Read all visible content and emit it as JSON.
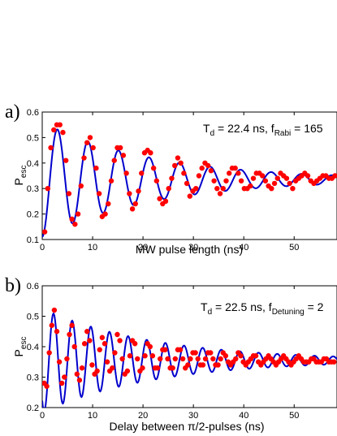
{
  "chart_data": [
    {
      "type": "scatter",
      "panel_label": "a)",
      "xlabel": "MW pulse length (ns)",
      "ylabel_main": "P",
      "ylabel_sub": "esc",
      "annotation": {
        "t_main": "T",
        "t_sub": "d",
        "t_value": " = 22.4 ns, f",
        "f_sub": "Rabi",
        "f_value": " = 165"
      },
      "xlim": [
        0,
        58.5
      ],
      "ylim": [
        0.1,
        0.6
      ],
      "x_ticks": [
        "0",
        "10",
        "20",
        "30",
        "40",
        "50"
      ],
      "y_ticks": [
        "0.1",
        "0.2",
        "0.3",
        "0.4",
        "0.5",
        "0.6"
      ],
      "grid": false,
      "colors": {
        "points": "#ff0000",
        "fit": "#0000cc"
      },
      "fit": {
        "offset": 0.335,
        "amplitude": -0.225,
        "period_ns": 6.06,
        "decay_ns": 22.4
      },
      "series": [
        {
          "style": "markers",
          "x": [
            0.5,
            1.1,
            1.7,
            2.3,
            2.9,
            3.5,
            4.1,
            4.7,
            5.3,
            5.9,
            6.5,
            7.1,
            7.7,
            8.3,
            8.9,
            9.5,
            10.1,
            10.7,
            11.3,
            11.9,
            12.5,
            13.1,
            13.7,
            14.3,
            14.9,
            15.5,
            16.1,
            16.7,
            17.3,
            17.9,
            18.5,
            19.1,
            19.7,
            20.3,
            20.9,
            21.5,
            22.1,
            22.7,
            23.3,
            23.9,
            24.5,
            25.1,
            25.7,
            26.3,
            26.9,
            27.5,
            28.1,
            28.7,
            29.3,
            29.9,
            30.5,
            31.1,
            31.7,
            32.3,
            32.9,
            33.5,
            34.1,
            34.7,
            35.3,
            35.9,
            36.5,
            37.1,
            37.7,
            38.3,
            38.9,
            39.5,
            40.1,
            40.7,
            41.3,
            41.9,
            42.5,
            43.1,
            43.7,
            44.3,
            44.9,
            45.5,
            46.1,
            46.7,
            47.3,
            47.9,
            48.5,
            49.1,
            49.7,
            50.3,
            50.9,
            51.5,
            52.1,
            52.7,
            53.3,
            53.9,
            54.5,
            55.1,
            55.7,
            56.3,
            56.9,
            57.5,
            58.1
          ],
          "y": [
            0.13,
            0.3,
            0.46,
            0.53,
            0.55,
            0.55,
            0.52,
            0.41,
            0.28,
            0.18,
            0.16,
            0.2,
            0.31,
            0.42,
            0.48,
            0.5,
            0.46,
            0.38,
            0.28,
            0.19,
            0.2,
            0.24,
            0.33,
            0.41,
            0.46,
            0.46,
            0.43,
            0.36,
            0.28,
            0.22,
            0.24,
            0.29,
            0.36,
            0.44,
            0.45,
            0.44,
            0.38,
            0.33,
            0.26,
            0.24,
            0.25,
            0.3,
            0.34,
            0.39,
            0.42,
            0.4,
            0.36,
            0.32,
            0.27,
            0.29,
            0.3,
            0.35,
            0.38,
            0.4,
            0.39,
            0.37,
            0.33,
            0.3,
            0.28,
            0.3,
            0.33,
            0.36,
            0.38,
            0.38,
            0.36,
            0.33,
            0.3,
            0.3,
            0.31,
            0.34,
            0.36,
            0.36,
            0.35,
            0.33,
            0.31,
            0.3,
            0.32,
            0.34,
            0.36,
            0.35,
            0.34,
            0.32,
            0.3,
            0.33,
            0.34,
            0.35,
            0.36,
            0.35,
            0.33,
            0.32,
            0.33,
            0.34,
            0.35,
            0.35,
            0.34,
            0.34,
            0.35
          ]
        },
        {
          "style": "fit-line"
        }
      ]
    },
    {
      "type": "scatter",
      "panel_label": "b)",
      "xlabel": "Delay between π/2-pulses (ns)",
      "ylabel_main": "P",
      "ylabel_sub": "esc",
      "annotation": {
        "t_main": "T",
        "t_sub": "d",
        "t_value": " = 22.5 ns, f",
        "f_sub": "Detuning",
        "f_value": " = 2"
      },
      "xlim": [
        0,
        58.5
      ],
      "ylim": [
        0.2,
        0.6
      ],
      "x_ticks": [
        "0",
        "10",
        "20",
        "30",
        "40",
        "50"
      ],
      "y_ticks": [
        "0.2",
        "0.3",
        "0.4",
        "0.5",
        "0.6"
      ],
      "grid": false,
      "colors": {
        "points": "#ff0000",
        "fit": "#0000cc"
      },
      "fit": {
        "offset": 0.355,
        "amplitude": 0.17,
        "period_ns": 3.7,
        "decay_ns": 22.5,
        "phase_shift_ns": 0.4
      },
      "series": [
        {
          "style": "markers",
          "x": [
            0.4,
            0.9,
            1.4,
            1.9,
            2.4,
            2.9,
            3.4,
            3.9,
            4.4,
            4.9,
            5.4,
            5.9,
            6.4,
            6.9,
            7.4,
            7.9,
            8.4,
            8.9,
            9.4,
            9.9,
            10.4,
            10.9,
            11.4,
            11.9,
            12.4,
            12.9,
            13.4,
            13.9,
            14.4,
            14.9,
            15.4,
            15.9,
            16.4,
            16.9,
            17.4,
            17.9,
            18.4,
            18.9,
            19.4,
            19.9,
            20.4,
            20.9,
            21.4,
            21.9,
            22.4,
            22.9,
            23.4,
            23.9,
            24.4,
            24.9,
            25.4,
            25.9,
            26.4,
            26.9,
            27.4,
            27.9,
            28.4,
            28.9,
            29.4,
            29.9,
            30.4,
            30.9,
            31.4,
            31.9,
            32.4,
            32.9,
            33.4,
            33.9,
            34.4,
            34.9,
            35.4,
            35.9,
            36.4,
            36.9,
            37.4,
            37.9,
            38.4,
            38.9,
            39.4,
            39.9,
            40.4,
            40.9,
            41.4,
            41.9,
            42.4,
            42.9,
            43.4,
            43.9,
            44.4,
            44.9,
            45.4,
            45.9,
            46.4,
            46.9,
            47.4,
            47.9,
            48.4,
            48.9,
            49.4,
            49.9,
            50.4,
            50.9,
            51.4,
            51.9,
            52.4,
            52.9,
            53.4,
            53.9,
            54.4,
            54.9,
            55.4,
            55.9,
            56.4,
            56.9,
            57.4,
            57.9
          ],
          "y": [
            0.28,
            0.27,
            0.38,
            0.47,
            0.52,
            0.45,
            0.35,
            0.28,
            0.3,
            0.36,
            0.44,
            0.47,
            0.4,
            0.31,
            0.29,
            0.33,
            0.41,
            0.45,
            0.42,
            0.34,
            0.31,
            0.32,
            0.39,
            0.43,
            0.41,
            0.35,
            0.32,
            0.33,
            0.38,
            0.44,
            0.42,
            0.36,
            0.31,
            0.32,
            0.37,
            0.42,
            0.41,
            0.36,
            0.32,
            0.33,
            0.37,
            0.41,
            0.4,
            0.37,
            0.33,
            0.33,
            0.36,
            0.39,
            0.39,
            0.36,
            0.33,
            0.33,
            0.36,
            0.39,
            0.39,
            0.36,
            0.33,
            0.34,
            0.36,
            0.38,
            0.38,
            0.36,
            0.34,
            0.34,
            0.36,
            0.38,
            0.38,
            0.36,
            0.34,
            0.34,
            0.36,
            0.38,
            0.37,
            0.35,
            0.34,
            0.35,
            0.36,
            0.38,
            0.37,
            0.35,
            0.34,
            0.35,
            0.36,
            0.37,
            0.37,
            0.35,
            0.34,
            0.35,
            0.36,
            0.37,
            0.36,
            0.35,
            0.34,
            0.35,
            0.36,
            0.37,
            0.36,
            0.35,
            0.34,
            0.35,
            0.36,
            0.37,
            0.36,
            0.35,
            0.35,
            0.35,
            0.36,
            0.36,
            0.35,
            0.35,
            0.35,
            0.36,
            0.36,
            0.35,
            0.35,
            0.35
          ]
        },
        {
          "style": "fit-line"
        }
      ]
    }
  ]
}
